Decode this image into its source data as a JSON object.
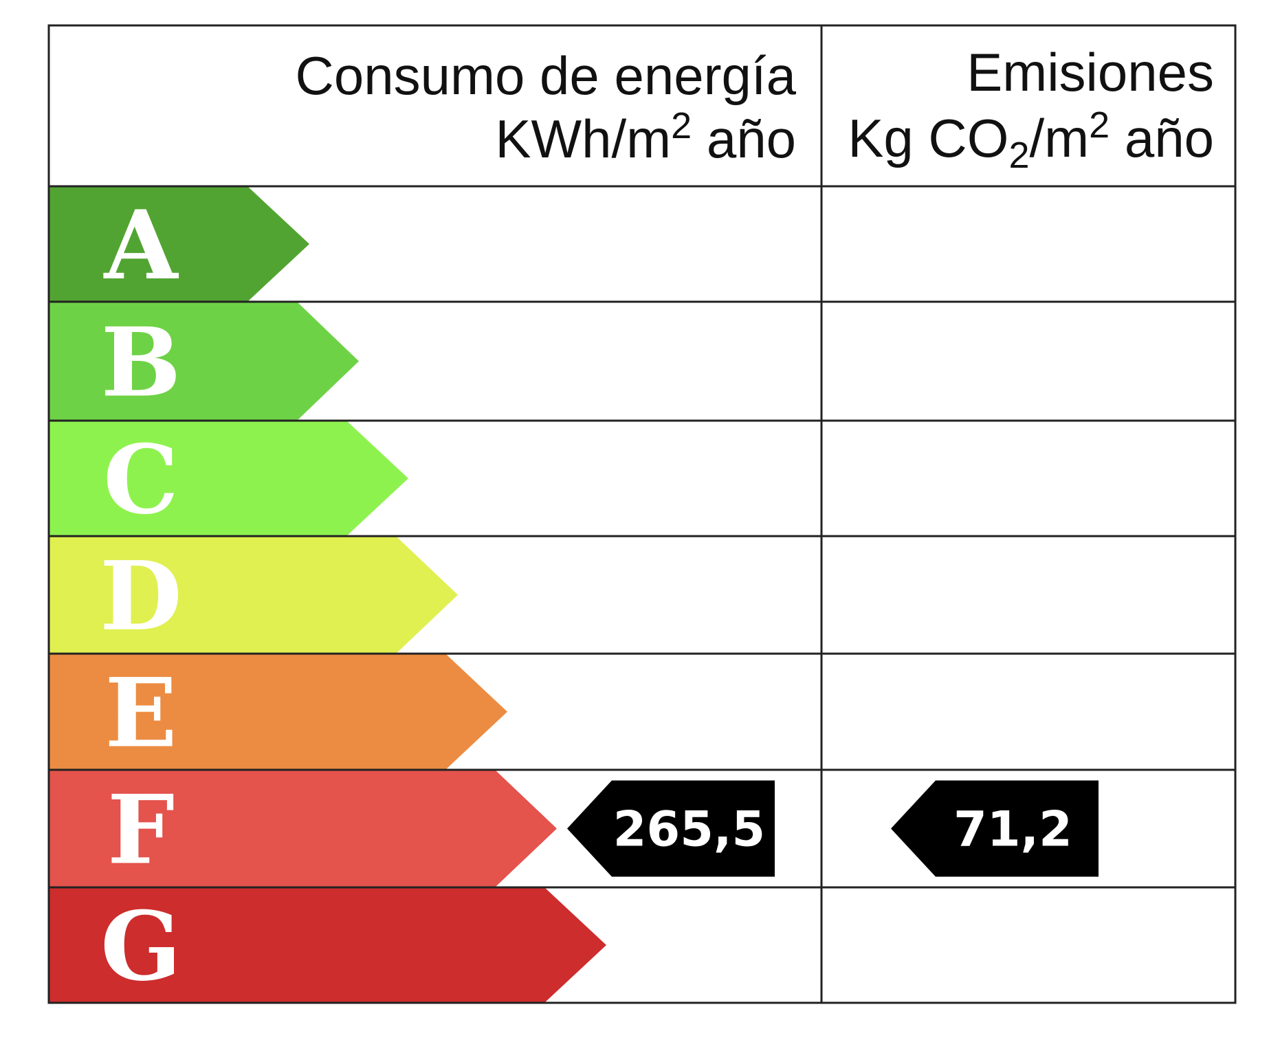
{
  "header": {
    "energy_line1": "Consumo de energía",
    "energy_line2_a": "KWh/m",
    "energy_line2_sup": "2",
    "energy_line2_b": " año",
    "emissions_line1": "Emisiones",
    "emissions_line2_a": "Kg CO",
    "emissions_line2_sub": "2",
    "emissions_line2_b": "/m",
    "emissions_line2_sup": "2",
    "emissions_line2_c": " año"
  },
  "grades": [
    {
      "letter": "A",
      "color": "#52a432"
    },
    {
      "letter": "B",
      "color": "#6ed246"
    },
    {
      "letter": "C",
      "color": "#8ef24e"
    },
    {
      "letter": "D",
      "color": "#dff050"
    },
    {
      "letter": "E",
      "color": "#ec8c42"
    },
    {
      "letter": "F",
      "color": "#e4534c"
    },
    {
      "letter": "G",
      "color": "#cd2d2d"
    }
  ],
  "energy_rating": {
    "grade": "F",
    "value": "265,5"
  },
  "emissions_rating": {
    "grade": "F",
    "value": "71,2"
  },
  "colors": {
    "marker": "#000000",
    "grid_line": "#222222",
    "letter": "#ffffff"
  }
}
